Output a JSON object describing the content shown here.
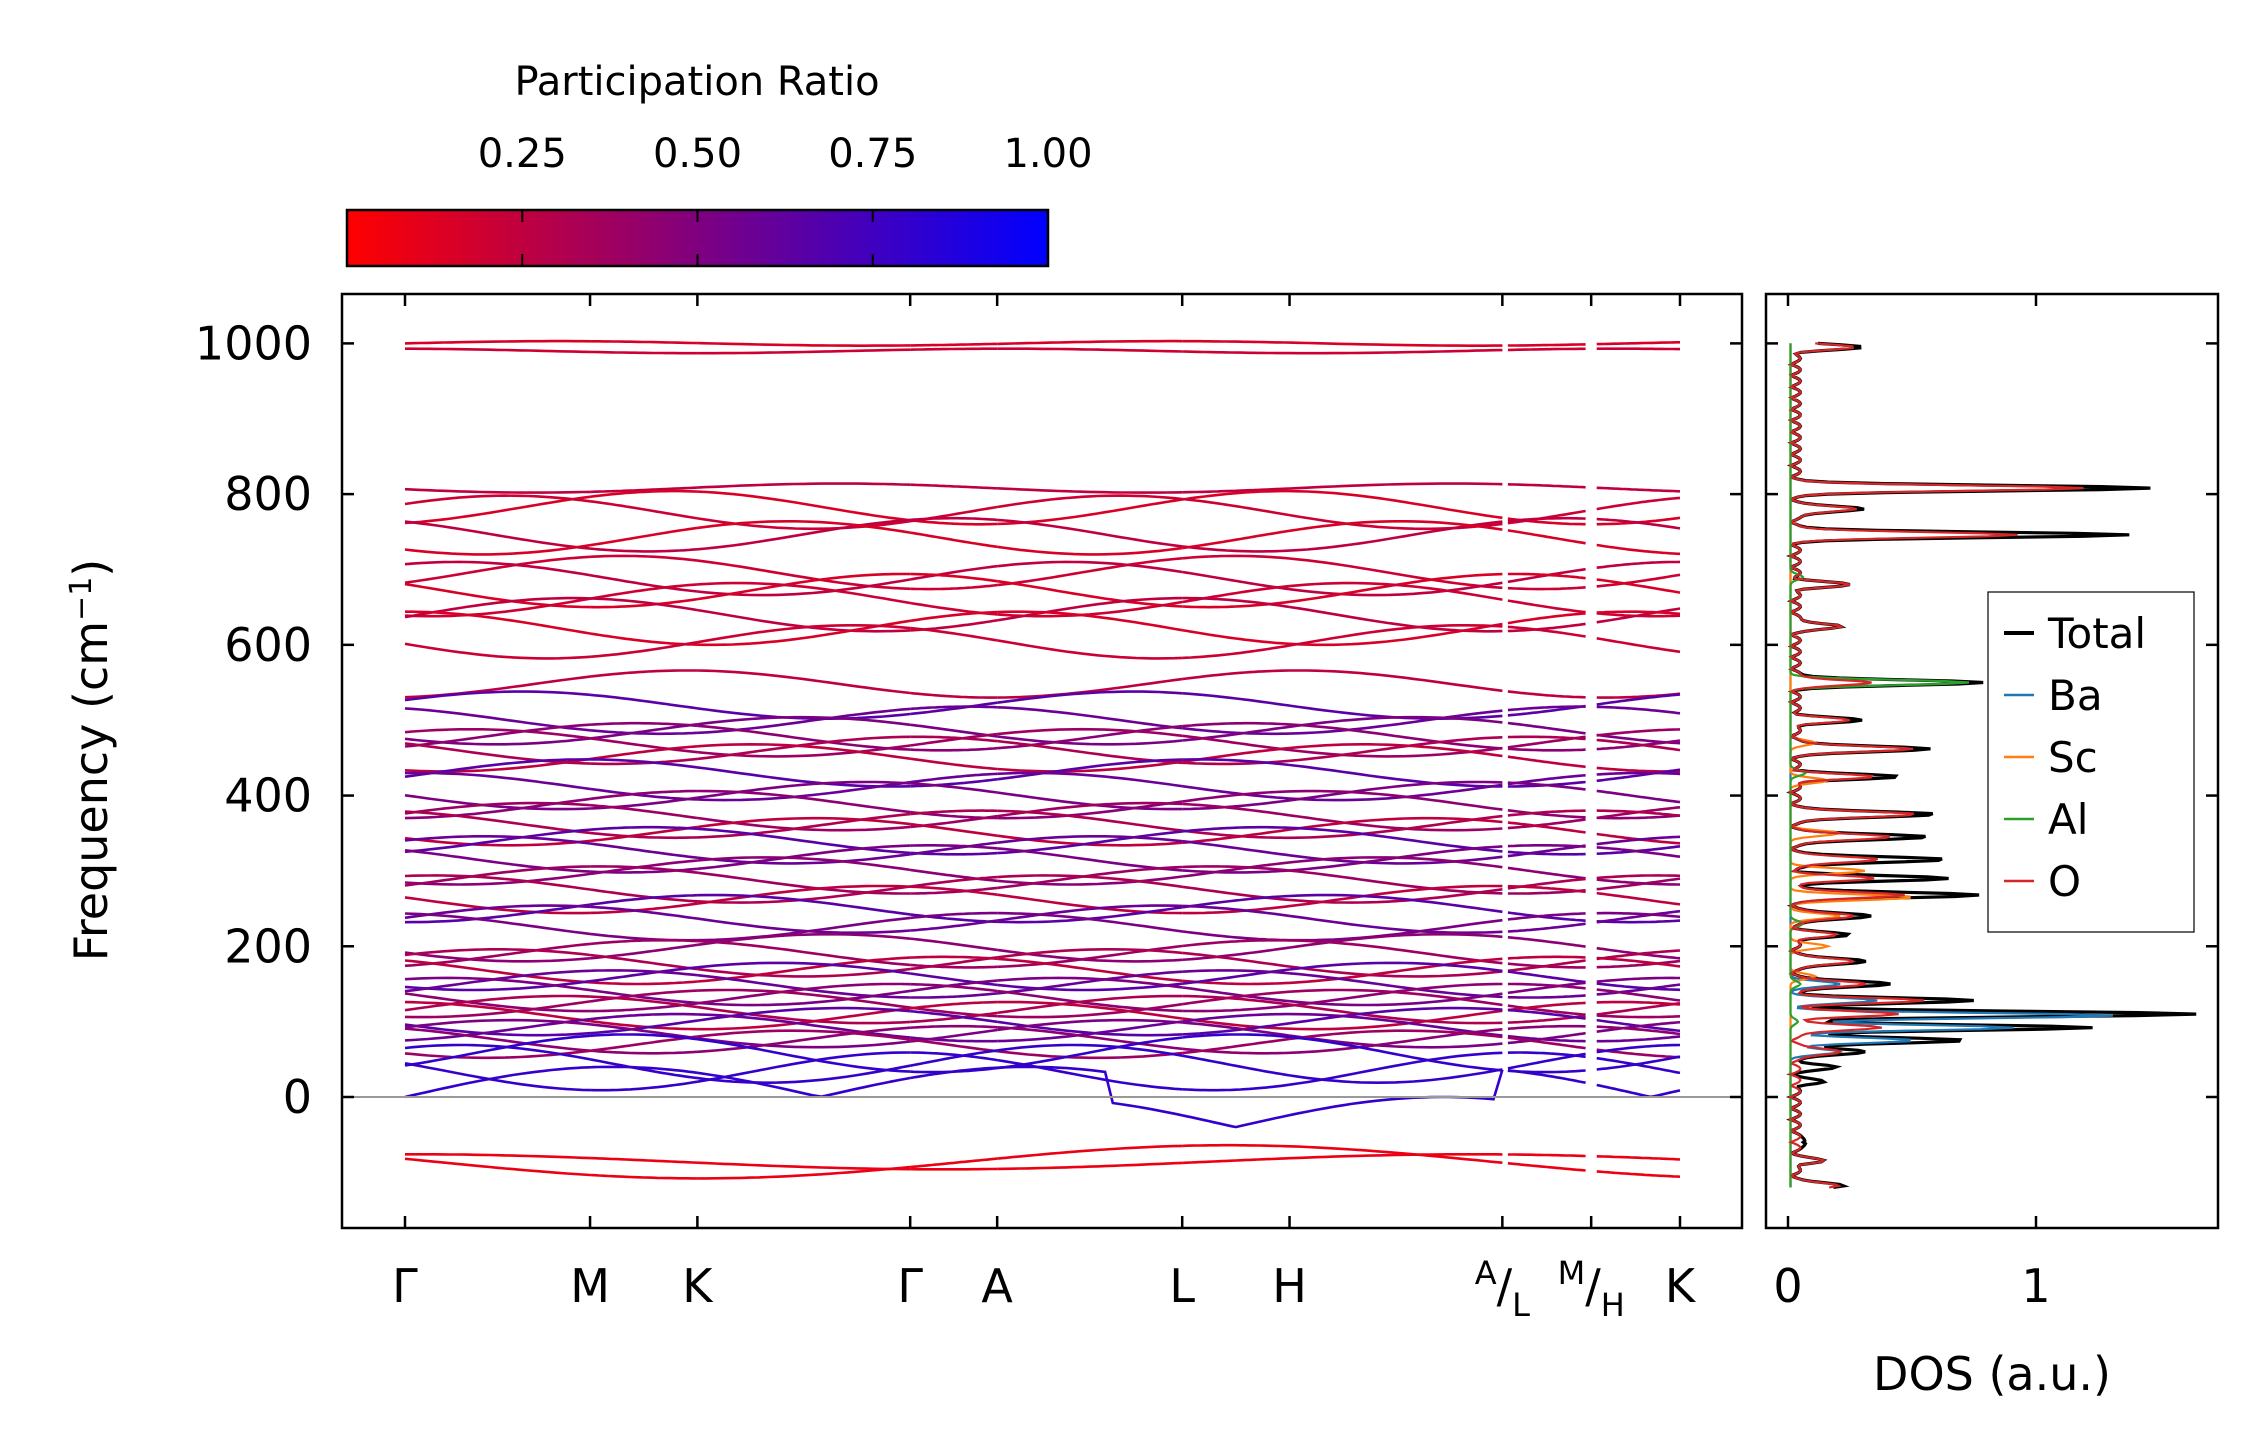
{
  "colors": {
    "low": "#ff0000",
    "high": "#0000ff",
    "zero_line": "#999999",
    "Total": "#000000",
    "Ba": "#1f77b4",
    "Sc": "#ff7f0e",
    "Al": "#2ca02c",
    "O": "#d62728"
  },
  "colorbar": {
    "label": "Participation Ratio",
    "range": [
      0.0,
      1.0
    ],
    "ticks": [
      0.25,
      0.5,
      0.75,
      1.0
    ],
    "tick_labels": [
      "0.25",
      "0.50",
      "0.75",
      "1.00"
    ]
  },
  "chart_data": [
    {
      "type": "line",
      "title": "",
      "ylabel_main": "Frequency (cm",
      "ylabel_sup": "−1",
      "ylabel_close": ")",
      "ylim": [
        -175,
        1060
      ],
      "yticks": [
        0,
        200,
        400,
        600,
        800,
        1000
      ],
      "ytick_labels": [
        "0",
        "200",
        "400",
        "600",
        "800",
        "1000"
      ],
      "xticks": [
        {
          "pos": 0,
          "label": "Γ"
        },
        {
          "pos": 1,
          "label": "M"
        },
        {
          "pos": 1.58,
          "label": "K"
        },
        {
          "pos": 2.73,
          "label": "Γ"
        },
        {
          "pos": 3.2,
          "label": "A"
        },
        {
          "pos": 4.2,
          "label": "L"
        },
        {
          "pos": 4.78,
          "label": "H"
        },
        {
          "pos": 5.93,
          "label": "A|L",
          "split": true,
          "sup": "A",
          "sub": "L"
        },
        {
          "pos": 6.41,
          "label": "M|H",
          "split": true,
          "sup": "M",
          "sub": "H"
        },
        {
          "pos": 6.89,
          "label": "K"
        }
      ],
      "xlim": [
        -0.35,
        7.24
      ],
      "band_frequencies_at_gamma": [
        1000,
        990,
        808,
        782,
        776,
        746,
        742,
        696,
        688,
        672,
        660,
        640,
        622,
        604,
        548,
        520,
        500,
        486,
        478,
        470,
        460,
        450,
        430,
        412,
        400,
        388,
        372,
        362,
        352,
        340,
        328,
        316,
        300,
        288,
        276,
        262,
        250,
        236,
        226,
        198,
        190,
        178,
        168,
        160,
        150,
        140,
        132,
        124,
        116,
        108,
        100,
        92,
        84,
        76,
        70,
        58,
        44,
        34,
        0,
        -86,
        -86
      ],
      "description": "Phonon dispersion colored by participation ratio"
    },
    {
      "type": "line",
      "xlabel": "DOS (a.u.)",
      "xlim": [
        -0.05,
        1.78
      ],
      "xticks": [
        0,
        1
      ],
      "xtick_labels": [
        "0",
        "1"
      ],
      "ylim": [
        -175,
        1060
      ],
      "legend_position": "right",
      "series": [
        {
          "name": "Total",
          "peaks": [
            [
              995,
              0.25
            ],
            [
              808,
              1.45
            ],
            [
              780,
              0.28
            ],
            [
              746,
              1.35
            ],
            [
              680,
              0.2
            ],
            [
              625,
              0.18
            ],
            [
              550,
              0.75
            ],
            [
              500,
              0.25
            ],
            [
              462,
              0.55
            ],
            [
              425,
              0.4
            ],
            [
              375,
              0.58
            ],
            [
              345,
              0.55
            ],
            [
              315,
              0.62
            ],
            [
              290,
              0.6
            ],
            [
              268,
              0.75
            ],
            [
              240,
              0.32
            ],
            [
              215,
              0.2
            ],
            [
              180,
              0.3
            ],
            [
              150,
              0.4
            ],
            [
              128,
              0.7
            ],
            [
              110,
              1.6
            ],
            [
              92,
              1.2
            ],
            [
              75,
              0.7
            ],
            [
              60,
              0.3
            ],
            [
              40,
              0.15
            ],
            [
              20,
              0.1
            ],
            [
              -60,
              0.05
            ],
            [
              -85,
              0.1
            ],
            [
              -118,
              0.2
            ]
          ]
        },
        {
          "name": "Ba",
          "peaks": [
            [
              108,
              1.3
            ],
            [
              92,
              0.9
            ],
            [
              75,
              0.5
            ],
            [
              128,
              0.35
            ],
            [
              150,
              0.2
            ],
            [
              60,
              0.2
            ]
          ]
        },
        {
          "name": "Sc",
          "peaks": [
            [
              265,
              0.5
            ],
            [
              240,
              0.2
            ],
            [
              300,
              0.3
            ],
            [
              350,
              0.2
            ],
            [
              420,
              0.15
            ],
            [
              470,
              0.1
            ],
            [
              200,
              0.15
            ],
            [
              160,
              0.1
            ]
          ]
        },
        {
          "name": "Al",
          "peaks": [
            [
              550,
              0.72
            ],
            [
              690,
              0.05
            ],
            [
              430,
              0.06
            ],
            [
              230,
              0.05
            ],
            [
              150,
              0.04
            ],
            [
              100,
              0.03
            ]
          ]
        },
        {
          "name": "O",
          "peaks": [
            [
              995,
              0.22
            ],
            [
              808,
              1.18
            ],
            [
              780,
              0.25
            ],
            [
              746,
              0.9
            ],
            [
              680,
              0.2
            ],
            [
              625,
              0.18
            ],
            [
              550,
              0.3
            ],
            [
              500,
              0.2
            ],
            [
              462,
              0.48
            ],
            [
              425,
              0.3
            ],
            [
              375,
              0.5
            ],
            [
              345,
              0.4
            ],
            [
              315,
              0.35
            ],
            [
              290,
              0.3
            ],
            [
              268,
              0.45
            ],
            [
              240,
              0.25
            ],
            [
              215,
              0.15
            ],
            [
              180,
              0.25
            ],
            [
              150,
              0.3
            ],
            [
              128,
              0.5
            ],
            [
              110,
              0.4
            ],
            [
              92,
              0.35
            ],
            [
              60,
              0.2
            ],
            [
              -85,
              0.1
            ],
            [
              -118,
              0.18
            ]
          ]
        }
      ]
    }
  ]
}
